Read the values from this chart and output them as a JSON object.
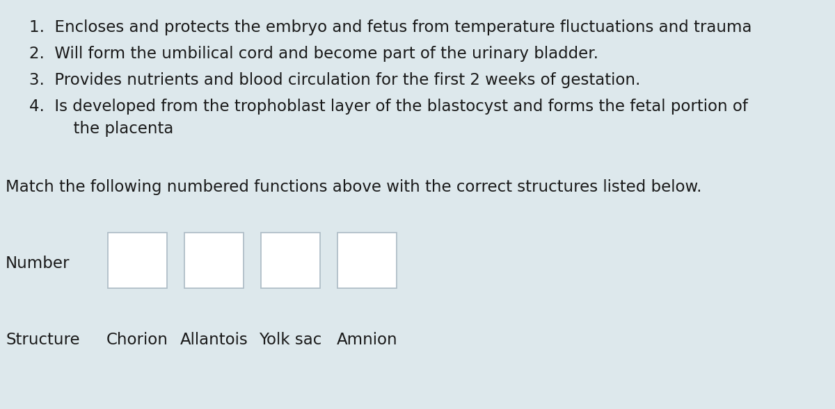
{
  "background_color": "#dde8ec",
  "text_color": "#1a1a1a",
  "font_family": "DejaVu Sans",
  "item1": "1.  Encloses and protects the embryo and fetus from temperature fluctuations and trauma",
  "item2": "2.  Will form the umbilical cord and become part of the urinary bladder.",
  "item3": "3.  Provides nutrients and blood circulation for the first 2 weeks of gestation.",
  "item4a": "4.  Is developed from the trophoblast layer of the blastocyst and forms the fetal portion of",
  "item4b": "      the placenta",
  "match_text": "Match the following numbered functions above with the correct structures listed below.",
  "row_label_number": "Number",
  "row_label_structure": "Structure",
  "structures": [
    "Chorion",
    "Allantois",
    "Yolk sac",
    "Amnion"
  ],
  "box_color": "#ffffff",
  "box_edge_color": "#b0bec8",
  "item_fontsize": 16.5,
  "match_fontsize": 16.5,
  "label_fontsize": 16.5,
  "structure_fontsize": 16.5
}
